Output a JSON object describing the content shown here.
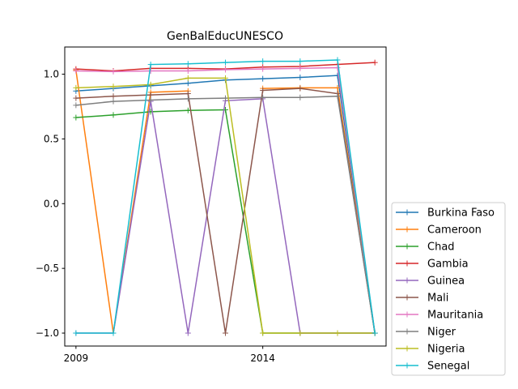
{
  "chart_data": {
    "type": "line",
    "title": "GenBalEducUNESCO",
    "xlabel": "",
    "ylabel": "",
    "x": [
      2009,
      2010,
      2011,
      2012,
      2013,
      2014,
      2015,
      2016,
      2017
    ],
    "xlim": [
      2008.7,
      2017.3
    ],
    "ylim": [
      -1.1,
      1.21
    ],
    "xticks": [
      2009,
      2014
    ],
    "yticks": [
      -1.0,
      -0.5,
      0.0,
      0.5,
      1.0
    ],
    "ytick_labels": [
      "−1.0",
      "−0.5",
      "0.0",
      "0.5",
      "1.0"
    ],
    "grid": false,
    "legend_position": "outside-right-bottom",
    "series": [
      {
        "name": "Burkina Faso",
        "color": "#1f77b4",
        "values": [
          0.87,
          0.89,
          0.91,
          0.93,
          0.955,
          0.965,
          0.975,
          0.99,
          -1.0
        ]
      },
      {
        "name": "Cameroon",
        "color": "#ff7f0e",
        "values": [
          1.03,
          -1.0,
          0.86,
          0.87,
          null,
          0.89,
          0.895,
          0.895,
          -1.0
        ]
      },
      {
        "name": "Chad",
        "color": "#2ca02c",
        "values": [
          0.665,
          0.685,
          0.71,
          0.72,
          0.725,
          -1.0,
          -1.0,
          -1.0,
          -1.0
        ]
      },
      {
        "name": "Gambia",
        "color": "#d62728",
        "values": [
          1.04,
          1.025,
          1.045,
          1.045,
          1.04,
          1.055,
          1.06,
          1.075,
          1.09
        ]
      },
      {
        "name": "Guinea",
        "color": "#9467bd",
        "values": [
          -1.0,
          -1.0,
          0.79,
          -1.0,
          0.795,
          0.81,
          -1.0,
          -1.0,
          -1.0
        ]
      },
      {
        "name": "Mali",
        "color": "#8c564b",
        "values": [
          0.815,
          0.83,
          0.84,
          0.85,
          -1.0,
          0.875,
          0.89,
          0.85,
          -1.0
        ]
      },
      {
        "name": "Mauritania",
        "color": "#e377c2",
        "values": [
          1.025,
          1.02,
          1.025,
          1.025,
          1.035,
          1.04,
          1.045,
          1.05,
          -1.0
        ]
      },
      {
        "name": "Niger",
        "color": "#7f7f7f",
        "values": [
          0.76,
          0.79,
          0.8,
          0.81,
          0.815,
          0.82,
          0.82,
          0.83,
          -1.0
        ]
      },
      {
        "name": "Nigeria",
        "color": "#bcbd22",
        "values": [
          0.895,
          0.905,
          0.92,
          0.97,
          0.97,
          -1.0,
          -1.0,
          -1.0,
          -1.0
        ]
      },
      {
        "name": "Senegal",
        "color": "#17becf",
        "values": [
          -1.0,
          -1.0,
          1.075,
          1.08,
          1.09,
          1.1,
          1.1,
          1.11,
          -1.0
        ]
      }
    ]
  }
}
